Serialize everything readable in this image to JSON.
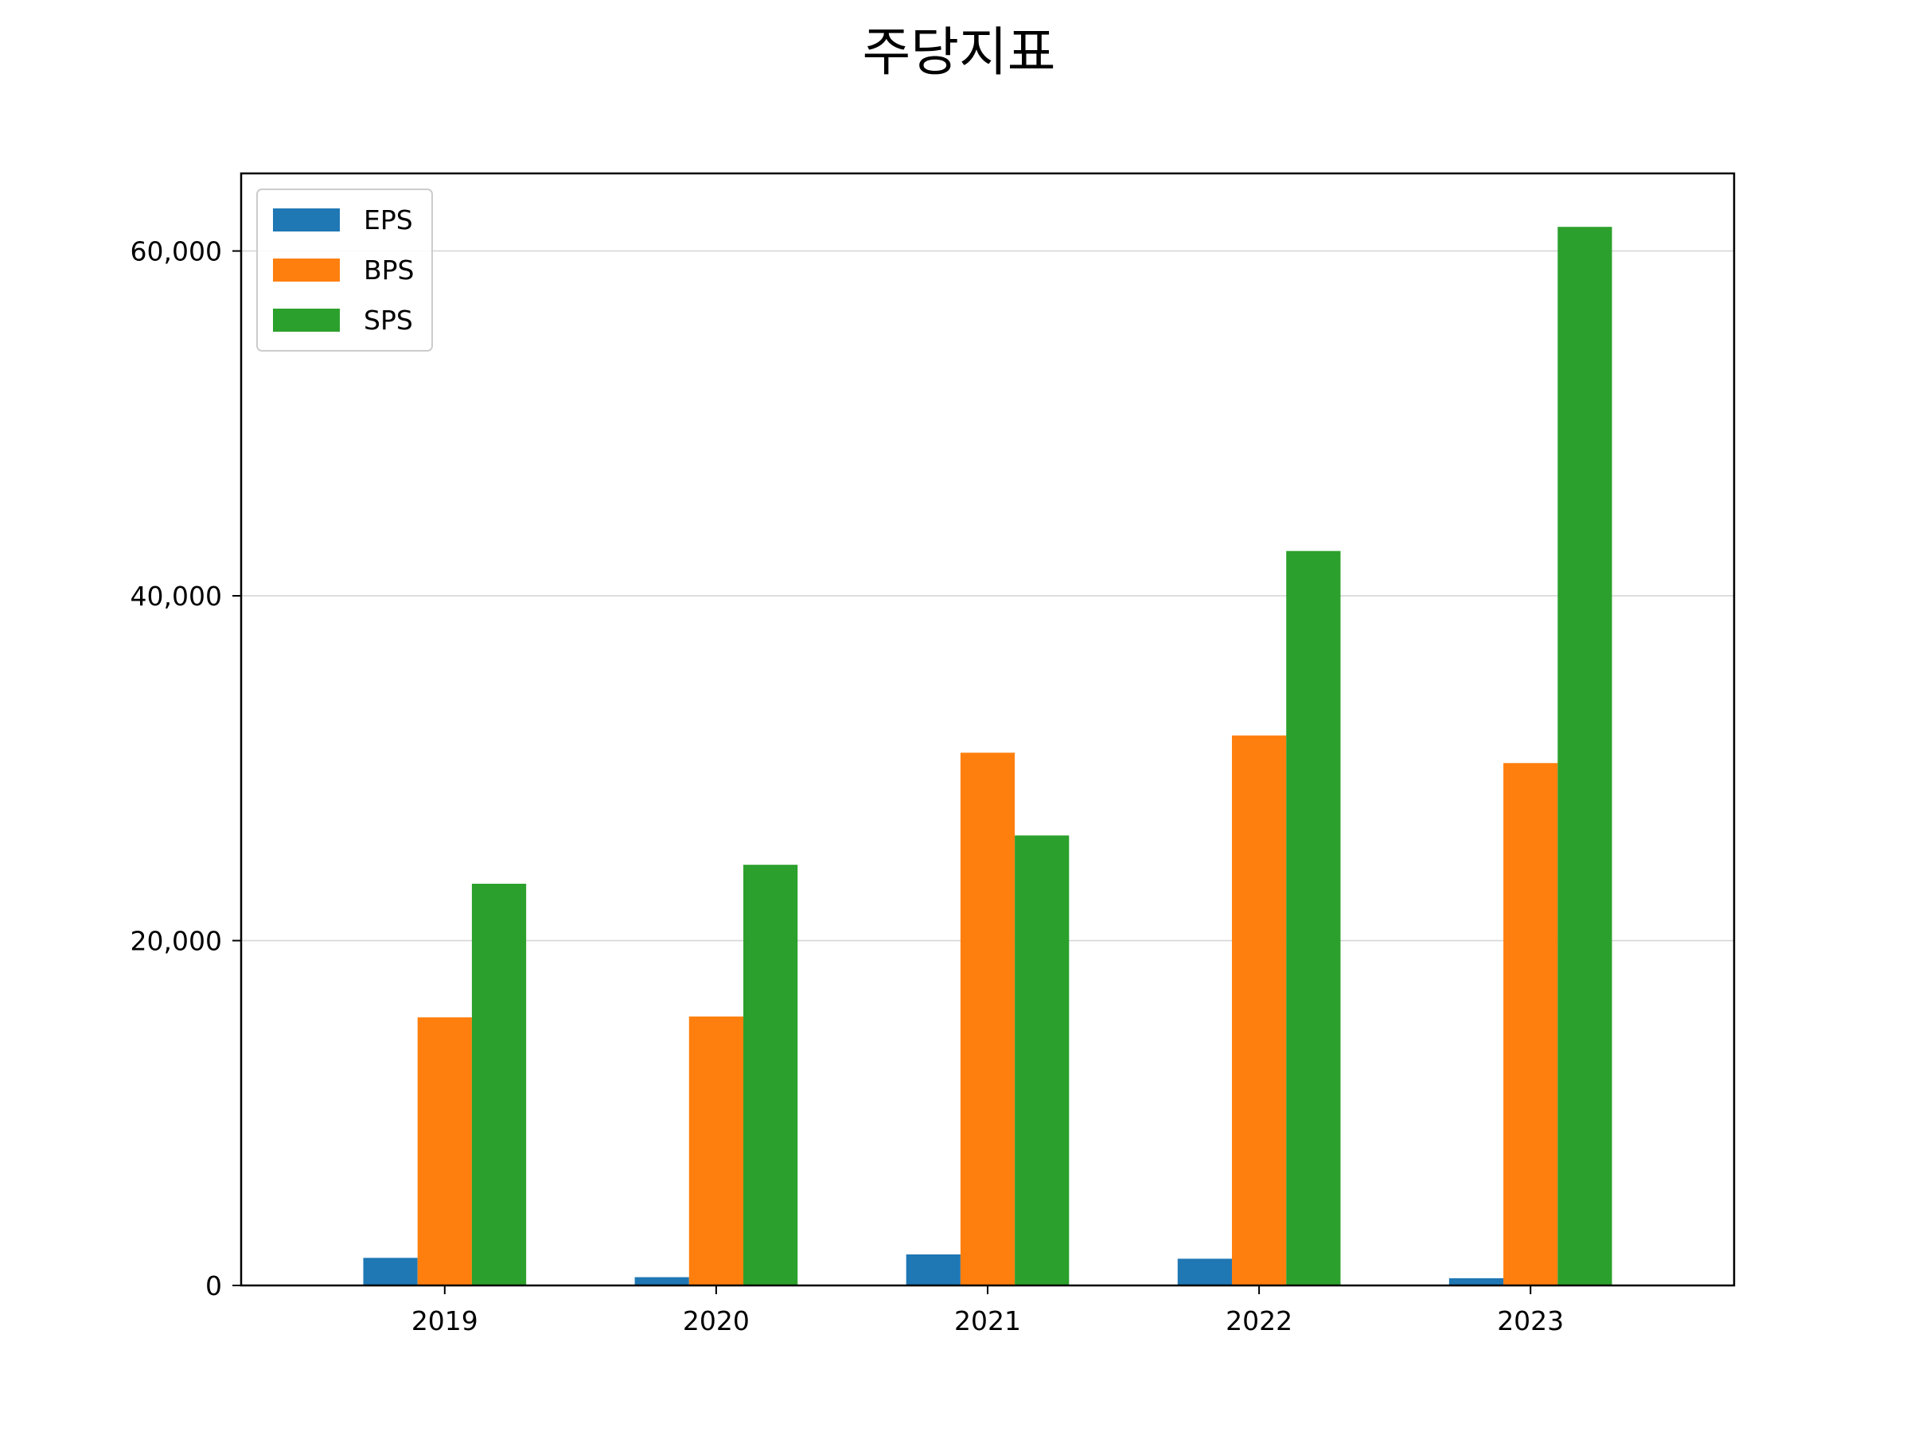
{
  "chart_data": {
    "type": "bar",
    "title": "주당지표",
    "xlabel": "",
    "ylabel": "",
    "categories": [
      "2019",
      "2020",
      "2021",
      "2022",
      "2023"
    ],
    "series": [
      {
        "name": "EPS",
        "color": "#1f77b4",
        "values": [
          1600,
          480,
          1800,
          1550,
          420
        ]
      },
      {
        "name": "BPS",
        "color": "#ff7f0e",
        "values": [
          15550,
          15600,
          30900,
          31900,
          30300
        ]
      },
      {
        "name": "SPS",
        "color": "#2ca02c",
        "values": [
          23300,
          24400,
          26100,
          42600,
          61400
        ]
      }
    ],
    "ylim": [
      0,
      64500
    ],
    "yticks": [
      0,
      20000,
      40000,
      60000
    ],
    "ytick_labels": [
      "0",
      "20,000",
      "40,000",
      "60,000"
    ],
    "grid": {
      "y": true,
      "x": false
    },
    "legend": {
      "placement": "top-left"
    }
  }
}
